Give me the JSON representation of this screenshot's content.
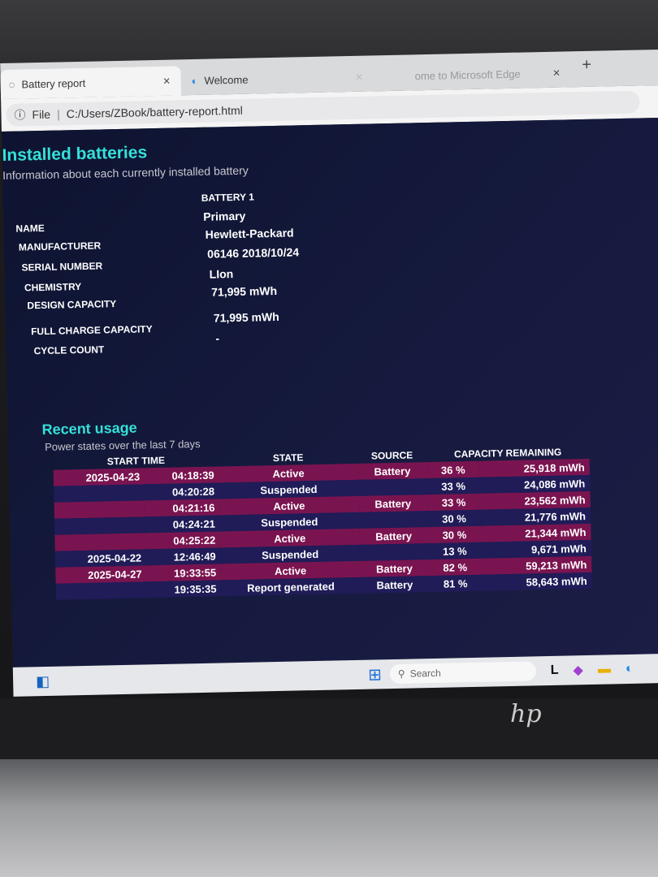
{
  "browser": {
    "tabs": [
      {
        "label": "Battery report"
      },
      {
        "label": "Welcome"
      },
      {
        "label": "ome to Microsoft Edge"
      }
    ],
    "new_tab": "+",
    "close": "×",
    "address_prefix": "File",
    "address": "C:/Users/ZBook/battery-report.html"
  },
  "installed": {
    "title": "Installed batteries",
    "subtitle": "Information about each currently installed battery",
    "battery_header": "BATTERY 1",
    "rows": [
      {
        "label": "NAME",
        "value": "Primary"
      },
      {
        "label": "MANUFACTURER",
        "value": "Hewlett-Packard"
      },
      {
        "label": "SERIAL NUMBER",
        "value": "06146 2018/10/24"
      },
      {
        "label": "CHEMISTRY",
        "value": "LIon"
      },
      {
        "label": "DESIGN CAPACITY",
        "value": "71,995 mWh"
      },
      {
        "label": "FULL CHARGE CAPACITY",
        "value": "71,995 mWh"
      },
      {
        "label": "CYCLE COUNT",
        "value": "-"
      }
    ]
  },
  "recent": {
    "title": "Recent usage",
    "subtitle": "Power states over the last 7 days",
    "headers": {
      "start": "START TIME",
      "state": "STATE",
      "source": "SOURCE",
      "capacity": "CAPACITY REMAINING"
    },
    "rows": [
      {
        "date": "2025-04-23",
        "time": "04:18:39",
        "state": "Active",
        "source": "Battery",
        "pct": "36 %",
        "mwh": "25,918 mWh"
      },
      {
        "date": "",
        "time": "04:20:28",
        "state": "Suspended",
        "source": "",
        "pct": "33 %",
        "mwh": "24,086 mWh"
      },
      {
        "date": "",
        "time": "04:21:16",
        "state": "Active",
        "source": "Battery",
        "pct": "33 %",
        "mwh": "23,562 mWh"
      },
      {
        "date": "",
        "time": "04:24:21",
        "state": "Suspended",
        "source": "",
        "pct": "30 %",
        "mwh": "21,776 mWh"
      },
      {
        "date": "",
        "time": "04:25:22",
        "state": "Active",
        "source": "Battery",
        "pct": "30 %",
        "mwh": "21,344 mWh"
      },
      {
        "date": "2025-04-22",
        "time": "12:46:49",
        "state": "Suspended",
        "source": "",
        "pct": "13 %",
        "mwh": "9,671 mWh"
      },
      {
        "date": "2025-04-27",
        "time": "19:33:55",
        "state": "Active",
        "source": "Battery",
        "pct": "82 %",
        "mwh": "59,213 mWh"
      },
      {
        "date": "",
        "time": "19:35:35",
        "state": "Report generated",
        "source": "Battery",
        "pct": "81 %",
        "mwh": "58,643 mWh"
      }
    ]
  },
  "taskbar": {
    "search": "Search"
  },
  "colors": {
    "accent": "#35e0d8",
    "row_odd": "#7a1450",
    "row_even": "#1f1c58"
  }
}
